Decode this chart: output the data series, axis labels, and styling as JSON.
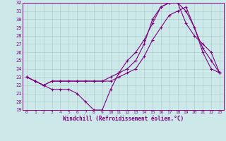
{
  "xlabel": "Windchill (Refroidissement éolien,°C)",
  "xlim": [
    -0.5,
    23.5
  ],
  "ylim": [
    19,
    32
  ],
  "yticks": [
    19,
    20,
    21,
    22,
    23,
    24,
    25,
    26,
    27,
    28,
    29,
    30,
    31,
    32
  ],
  "xticks": [
    0,
    1,
    2,
    3,
    4,
    5,
    6,
    7,
    8,
    9,
    10,
    11,
    12,
    13,
    14,
    15,
    16,
    17,
    18,
    19,
    20,
    21,
    22,
    23
  ],
  "line_color": "#800080",
  "bg_color": "#cce8e8",
  "line1_x": [
    0,
    1,
    2,
    3,
    4,
    5,
    6,
    7,
    8,
    9,
    10,
    11,
    12,
    13,
    14,
    15,
    16,
    17,
    18,
    19,
    20,
    21,
    22,
    23
  ],
  "line1_y": [
    23,
    22.5,
    22,
    21.5,
    21.5,
    21.5,
    21,
    20,
    19,
    19,
    21.5,
    23.5,
    25,
    26,
    27.5,
    29.5,
    31.5,
    32,
    32,
    31,
    29,
    26.5,
    25,
    23.5
  ],
  "line2_x": [
    0,
    1,
    2,
    3,
    4,
    5,
    6,
    7,
    8,
    9,
    10,
    11,
    12,
    13,
    14,
    15,
    16,
    17,
    18,
    19,
    20,
    21,
    22,
    23
  ],
  "line2_y": [
    23,
    22.5,
    22,
    22.5,
    22.5,
    22.5,
    22.5,
    22.5,
    22.5,
    22.5,
    22.5,
    23,
    23.5,
    24,
    25.5,
    27.5,
    29,
    30.5,
    31,
    31.5,
    29,
    26,
    24,
    23.5
  ],
  "line3_x": [
    0,
    1,
    2,
    3,
    4,
    5,
    6,
    7,
    8,
    9,
    10,
    11,
    12,
    13,
    14,
    15,
    16,
    17,
    18,
    19,
    20,
    21,
    22,
    23
  ],
  "line3_y": [
    23,
    22.5,
    22,
    22.5,
    22.5,
    22.5,
    22.5,
    22.5,
    22.5,
    22.5,
    23,
    23.5,
    24,
    25,
    27,
    30,
    31.5,
    32,
    32,
    29.5,
    28,
    27,
    26,
    23.5
  ]
}
